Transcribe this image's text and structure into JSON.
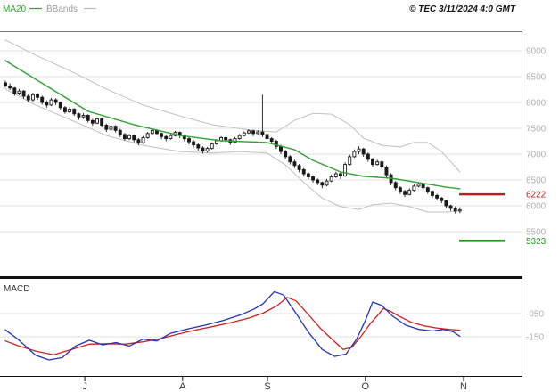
{
  "header": {
    "ma20_label": "MA20",
    "bbands_label": "BBands",
    "copyright": "© TEC 3/11/2024 4:0 GMT"
  },
  "price_pane": {
    "y_tick_labels": [
      "9000",
      "8500",
      "8000",
      "7500",
      "7000",
      "6500",
      "6000",
      "5500"
    ],
    "markers": [
      {
        "label": "6222",
        "value": 6222,
        "color": "#b22222"
      },
      {
        "label": "5323",
        "value": 5323,
        "color": "#1a9a1a"
      }
    ]
  },
  "macd_pane": {
    "label": "MACD",
    "y_tick_labels": [
      "-050",
      "-150"
    ]
  },
  "x_axis": {
    "months": [
      {
        "label": "J",
        "i": 17.3
      },
      {
        "label": "A",
        "i": 38.6
      },
      {
        "label": "S",
        "i": 57.1
      },
      {
        "label": "O",
        "i": 78.4
      },
      {
        "label": "N",
        "i": 99.8
      }
    ]
  },
  "colors": {
    "ma20": "#33a133",
    "bollinger": "#c0c0c0",
    "candle": "#1a1a1a",
    "grid": "#e0e0e0",
    "axis_text": "#b0b0b0",
    "marker_red": "#b22222",
    "marker_green": "#1a9a1a",
    "macd_fast": "#2233bb",
    "macd_signal": "#cc2222",
    "frame": "#111111"
  },
  "chart_data": {
    "type": "candlestick",
    "description": "Daily price candlesticks with MA20 line, Bollinger Bands, resistance 6222 and support 5323 markers, and MACD subchart (fast blue line, signal red line). X axis spans June to November.",
    "price_axis": {
      "ticks": [
        9000,
        8500,
        8000,
        7500,
        7000,
        6500,
        6000,
        5500
      ],
      "ylim": [
        5280,
        9380
      ]
    },
    "macd_axis": {
      "ticks": [
        -50,
        -150
      ],
      "ylim": [
        -280,
        80
      ]
    },
    "support_resistance": [
      6222,
      5323
    ],
    "candles_ohlc": [
      [
        8380,
        8420,
        8290,
        8320
      ],
      [
        8320,
        8370,
        8240,
        8280
      ],
      [
        8280,
        8300,
        8130,
        8180
      ],
      [
        8180,
        8260,
        8140,
        8220
      ],
      [
        8220,
        8240,
        8070,
        8120
      ],
      [
        8120,
        8160,
        8000,
        8050
      ],
      [
        8050,
        8190,
        8020,
        8150
      ],
      [
        8150,
        8180,
        8050,
        8100
      ],
      [
        8100,
        8130,
        7960,
        8000
      ],
      [
        8000,
        8040,
        7900,
        7950
      ],
      [
        7950,
        8090,
        7930,
        8050
      ],
      [
        8050,
        8080,
        7950,
        8000
      ],
      [
        8000,
        8020,
        7860,
        7900
      ],
      [
        7900,
        7930,
        7780,
        7820
      ],
      [
        7820,
        7910,
        7790,
        7870
      ],
      [
        7870,
        7890,
        7740,
        7780
      ],
      [
        7780,
        7800,
        7660,
        7720
      ],
      [
        7720,
        7790,
        7680,
        7750
      ],
      [
        7750,
        7770,
        7610,
        7650
      ],
      [
        7650,
        7680,
        7550,
        7600
      ],
      [
        7600,
        7710,
        7580,
        7680
      ],
      [
        7680,
        7700,
        7520,
        7560
      ],
      [
        7560,
        7590,
        7430,
        7480
      ],
      [
        7480,
        7570,
        7450,
        7540
      ],
      [
        7540,
        7560,
        7420,
        7460
      ],
      [
        7460,
        7490,
        7330,
        7380
      ],
      [
        7380,
        7410,
        7260,
        7300
      ],
      [
        7300,
        7390,
        7270,
        7360
      ],
      [
        7360,
        7380,
        7230,
        7280
      ],
      [
        7280,
        7310,
        7170,
        7220
      ],
      [
        7220,
        7350,
        7200,
        7320
      ],
      [
        7320,
        7430,
        7300,
        7400
      ],
      [
        7400,
        7490,
        7380,
        7460
      ],
      [
        7460,
        7480,
        7360,
        7400
      ],
      [
        7400,
        7420,
        7290,
        7340
      ],
      [
        7340,
        7370,
        7250,
        7300
      ],
      [
        7300,
        7390,
        7280,
        7360
      ],
      [
        7360,
        7450,
        7340,
        7420
      ],
      [
        7420,
        7440,
        7310,
        7360
      ],
      [
        7360,
        7380,
        7250,
        7300
      ],
      [
        7300,
        7330,
        7190,
        7240
      ],
      [
        7240,
        7270,
        7130,
        7180
      ],
      [
        7180,
        7210,
        7070,
        7120
      ],
      [
        7120,
        7150,
        7010,
        7060
      ],
      [
        7060,
        7140,
        7030,
        7110
      ],
      [
        7110,
        7230,
        7090,
        7200
      ],
      [
        7200,
        7290,
        7180,
        7260
      ],
      [
        7260,
        7350,
        7240,
        7320
      ],
      [
        7320,
        7340,
        7230,
        7280
      ],
      [
        7280,
        7300,
        7180,
        7230
      ],
      [
        7230,
        7330,
        7210,
        7300
      ],
      [
        7300,
        7390,
        7280,
        7360
      ],
      [
        7360,
        7440,
        7340,
        7410
      ],
      [
        7410,
        7480,
        7390,
        7450
      ],
      [
        7450,
        7470,
        7350,
        7400
      ],
      [
        7400,
        7460,
        7380,
        7430
      ],
      [
        7430,
        8150,
        7330,
        7380
      ],
      [
        7380,
        7410,
        7250,
        7300
      ],
      [
        7300,
        7330,
        7200,
        7250
      ],
      [
        7250,
        7280,
        7100,
        7150
      ],
      [
        7150,
        7180,
        7000,
        7050
      ],
      [
        7050,
        7080,
        6900,
        6950
      ],
      [
        6950,
        6980,
        6800,
        6850
      ],
      [
        6850,
        6890,
        6730,
        6780
      ],
      [
        6780,
        6810,
        6650,
        6700
      ],
      [
        6700,
        6730,
        6570,
        6620
      ],
      [
        6620,
        6650,
        6510,
        6560
      ],
      [
        6560,
        6590,
        6450,
        6500
      ],
      [
        6500,
        6530,
        6400,
        6450
      ],
      [
        6450,
        6470,
        6340,
        6400
      ],
      [
        6400,
        6520,
        6380,
        6480
      ],
      [
        6480,
        6600,
        6460,
        6560
      ],
      [
        6560,
        6660,
        6540,
        6620
      ],
      [
        6620,
        6650,
        6520,
        6580
      ],
      [
        6580,
        6840,
        6560,
        6800
      ],
      [
        6800,
        6990,
        6780,
        6950
      ],
      [
        6950,
        7090,
        6930,
        7050
      ],
      [
        7050,
        7150,
        7000,
        7100
      ],
      [
        7100,
        7120,
        6950,
        7000
      ],
      [
        7000,
        7030,
        6850,
        6900
      ],
      [
        6900,
        6930,
        6750,
        6800
      ],
      [
        6800,
        6890,
        6780,
        6850
      ],
      [
        6850,
        6870,
        6700,
        6750
      ],
      [
        6750,
        6780,
        6550,
        6600
      ],
      [
        6600,
        6630,
        6400,
        6450
      ],
      [
        6450,
        6480,
        6300,
        6350
      ],
      [
        6350,
        6380,
        6230,
        6280
      ],
      [
        6280,
        6310,
        6170,
        6220
      ],
      [
        6220,
        6340,
        6200,
        6300
      ],
      [
        6300,
        6420,
        6280,
        6380
      ],
      [
        6380,
        6460,
        6360,
        6420
      ],
      [
        6420,
        6440,
        6300,
        6350
      ],
      [
        6350,
        6370,
        6230,
        6280
      ],
      [
        6280,
        6300,
        6150,
        6200
      ],
      [
        6200,
        6230,
        6100,
        6150
      ],
      [
        6150,
        6170,
        6050,
        6100
      ],
      [
        6100,
        6120,
        5950,
        6000
      ],
      [
        6000,
        6020,
        5900,
        5950
      ],
      [
        5950,
        5990,
        5850,
        5900
      ],
      [
        5900,
        5970,
        5860,
        5920
      ]
    ],
    "ma20": [
      [
        0,
        8810
      ],
      [
        8.5,
        8345
      ],
      [
        18,
        7830
      ],
      [
        28,
        7570
      ],
      [
        38,
        7360
      ],
      [
        47,
        7260
      ],
      [
        57,
        7225
      ],
      [
        63,
        7085
      ],
      [
        67,
        6880
      ],
      [
        73,
        6655
      ],
      [
        78,
        6570
      ],
      [
        84,
        6535
      ],
      [
        90,
        6450
      ],
      [
        96,
        6360
      ],
      [
        99,
        6330
      ]
    ],
    "bb_upper": [
      [
        0,
        9210
      ],
      [
        6.6,
        8915
      ],
      [
        14.4,
        8600
      ],
      [
        22,
        8260
      ],
      [
        30,
        7950
      ],
      [
        38,
        7740
      ],
      [
        45,
        7570
      ],
      [
        53,
        7470
      ],
      [
        59,
        7430
      ],
      [
        63,
        7655
      ],
      [
        67,
        7790
      ],
      [
        71,
        7775
      ],
      [
        75,
        7570
      ],
      [
        78,
        7310
      ],
      [
        82,
        7170
      ],
      [
        86,
        7140
      ],
      [
        89,
        7225
      ],
      [
        92,
        7225
      ],
      [
        95,
        7050
      ],
      [
        99,
        6655
      ]
    ],
    "bb_lower": [
      [
        0,
        8260
      ],
      [
        6.6,
        7950
      ],
      [
        14.4,
        7655
      ],
      [
        22,
        7360
      ],
      [
        30,
        7170
      ],
      [
        38,
        7050
      ],
      [
        45,
        7020
      ],
      [
        51,
        7050
      ],
      [
        57,
        7020
      ],
      [
        61,
        6790
      ],
      [
        65,
        6450
      ],
      [
        69,
        6150
      ],
      [
        73,
        5985
      ],
      [
        77,
        5930
      ],
      [
        80,
        6020
      ],
      [
        84,
        6050
      ],
      [
        88,
        5985
      ],
      [
        92,
        5880
      ],
      [
        96,
        5880
      ],
      [
        99,
        5900
      ]
    ],
    "macd_fast": [
      [
        0,
        -120
      ],
      [
        2.7,
        -160
      ],
      [
        6.6,
        -230
      ],
      [
        9.5,
        -250
      ],
      [
        12.4,
        -240
      ],
      [
        15.3,
        -190
      ],
      [
        18.3,
        -165
      ],
      [
        21.2,
        -185
      ],
      [
        24.1,
        -175
      ],
      [
        27,
        -190
      ],
      [
        30,
        -160
      ],
      [
        33,
        -168
      ],
      [
        36,
        -135
      ],
      [
        40,
        -115
      ],
      [
        43.5,
        -100
      ],
      [
        47.4,
        -80
      ],
      [
        51.3,
        -55
      ],
      [
        54.2,
        -30
      ],
      [
        56.1,
        -8
      ],
      [
        58.6,
        45
      ],
      [
        60.6,
        30
      ],
      [
        63,
        -40
      ],
      [
        66,
        -130
      ],
      [
        69,
        -205
      ],
      [
        71.7,
        -235
      ],
      [
        74.2,
        -225
      ],
      [
        76.5,
        -160
      ],
      [
        78.4,
        -80
      ],
      [
        80,
        0
      ],
      [
        82,
        -15
      ],
      [
        84.3,
        -60
      ],
      [
        87.2,
        -100
      ],
      [
        90.1,
        -118
      ],
      [
        93,
        -125
      ],
      [
        95.5,
        -118
      ],
      [
        97.5,
        -128
      ],
      [
        99,
        -148
      ]
    ],
    "macd_signal": [
      [
        0,
        -168
      ],
      [
        2.7,
        -188
      ],
      [
        6.6,
        -212
      ],
      [
        10.5,
        -228
      ],
      [
        14.4,
        -205
      ],
      [
        18.3,
        -182
      ],
      [
        22.1,
        -180
      ],
      [
        26,
        -182
      ],
      [
        30,
        -172
      ],
      [
        33.8,
        -158
      ],
      [
        37.7,
        -138
      ],
      [
        41.6,
        -120
      ],
      [
        45.4,
        -105
      ],
      [
        49.3,
        -88
      ],
      [
        53.2,
        -68
      ],
      [
        56.1,
        -48
      ],
      [
        59,
        -18
      ],
      [
        61.4,
        20
      ],
      [
        63.3,
        5
      ],
      [
        65.8,
        -50
      ],
      [
        68.7,
        -115
      ],
      [
        71.1,
        -160
      ],
      [
        73.6,
        -205
      ],
      [
        75.5,
        -195
      ],
      [
        77.4,
        -150
      ],
      [
        79.4,
        -95
      ],
      [
        81.2,
        -55
      ],
      [
        82.3,
        -28
      ],
      [
        83.9,
        -40
      ],
      [
        85.8,
        -62
      ],
      [
        88.5,
        -88
      ],
      [
        91.2,
        -103
      ],
      [
        93.9,
        -112
      ],
      [
        96.6,
        -118
      ],
      [
        99,
        -122
      ]
    ]
  }
}
